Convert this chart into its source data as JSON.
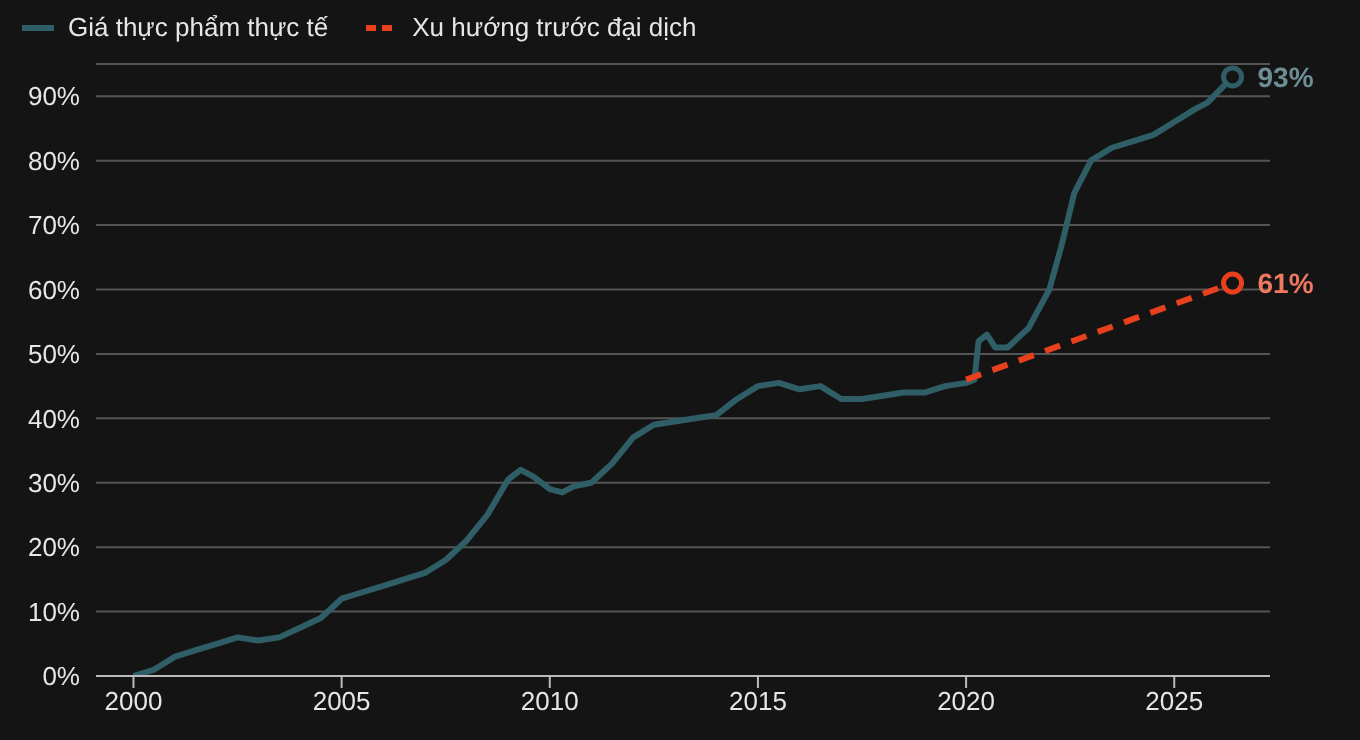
{
  "chart_data": {
    "type": "line",
    "xlim": [
      1999.1,
      2027.3
    ],
    "xticks": [
      2000,
      2005,
      2010,
      2015,
      2020,
      2025
    ],
    "ylim": [
      0,
      95
    ],
    "yticks": [
      {
        "value": 0,
        "label": "0%"
      },
      {
        "value": 10,
        "label": "10%"
      },
      {
        "value": 20,
        "label": "20%"
      },
      {
        "value": 30,
        "label": "30%"
      },
      {
        "value": 40,
        "label": "40%"
      },
      {
        "value": 50,
        "label": "50%"
      },
      {
        "value": 60,
        "label": "60%"
      },
      {
        "value": 70,
        "label": "70%"
      },
      {
        "value": 80,
        "label": "80%"
      },
      {
        "value": 90,
        "label": "90%"
      }
    ],
    "grid": "y",
    "legend": "top left",
    "series": [
      {
        "name": "Giá thực phẩm thực tế",
        "color": "#2f5e66",
        "line_style": "solid",
        "x": [
          2000,
          2000.5,
          2001,
          2001.5,
          2002,
          2002.5,
          2003,
          2003.5,
          2004,
          2004.5,
          2005,
          2005.5,
          2006,
          2006.5,
          2007,
          2007.5,
          2008,
          2008.5,
          2009,
          2009.3,
          2009.6,
          2010,
          2010.3,
          2010.6,
          2011,
          2011.5,
          2012,
          2012.5,
          2013,
          2013.5,
          2014,
          2014.5,
          2015,
          2015.5,
          2016,
          2016.5,
          2017,
          2017.5,
          2018,
          2018.5,
          2019,
          2019.5,
          2020,
          2020.2,
          2020.3,
          2020.5,
          2020.7,
          2021,
          2021.5,
          2022,
          2022.3,
          2022.6,
          2023,
          2023.5,
          2024,
          2024.5,
          2025,
          2025.5,
          2025.8,
          2026.4
        ],
        "values": [
          0,
          1,
          3,
          4,
          5,
          6,
          5.5,
          6,
          7.5,
          9,
          12,
          13,
          14,
          15,
          16,
          18,
          21,
          25,
          30.5,
          32,
          31,
          29,
          28.5,
          29.5,
          30,
          33,
          37,
          39,
          39.5,
          40,
          40.5,
          43,
          45,
          45.5,
          44.5,
          45,
          43,
          43,
          43.5,
          44,
          44,
          45,
          45.5,
          46,
          52,
          53,
          51,
          51,
          54,
          60,
          67,
          75,
          80,
          82,
          83,
          84,
          86,
          88,
          89,
          93
        ]
      },
      {
        "name": "Xu hướng trước đại dịch",
        "color": "#e8401c",
        "line_style": "dashed",
        "x": [
          2020,
          2026.4
        ],
        "values": [
          46,
          61
        ]
      }
    ],
    "annotations": [
      {
        "text": "93%",
        "x": 2026.4,
        "y": 93
      },
      {
        "text": "61%",
        "x": 2026.4,
        "y": 61
      }
    ]
  }
}
